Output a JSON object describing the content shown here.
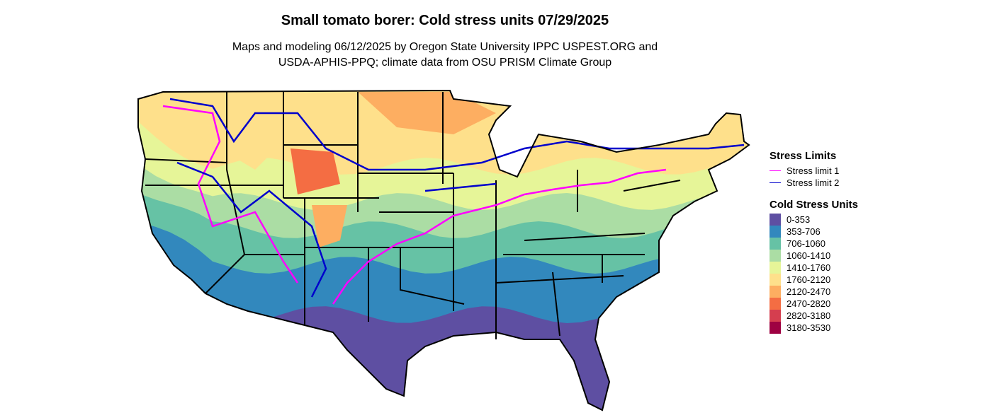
{
  "title": "Small tomato borer: Cold stress units 07/29/2025",
  "subtitle": [
    "Maps and modeling 06/12/2025 by Oregon State University IPPC USPEST.ORG and",
    "USDA-APHIS-PPQ; climate data from OSU PRISM Climate Group"
  ],
  "legend": {
    "lines_title": "Stress Limits",
    "lines": [
      {
        "label": "Stress limit 1",
        "color": "#ff00ff"
      },
      {
        "label": "Stress limit 2",
        "color": "#0000cc"
      }
    ],
    "fill_title": "Cold Stress Units",
    "bins": [
      {
        "label": "0-353",
        "color": "#5e4fa2"
      },
      {
        "label": "353-706",
        "color": "#3288bd"
      },
      {
        "label": "706-1060",
        "color": "#66c2a5"
      },
      {
        "label": "1060-1410",
        "color": "#abdda4"
      },
      {
        "label": "1410-1760",
        "color": "#e6f598"
      },
      {
        "label": "1760-2120",
        "color": "#fee08b"
      },
      {
        "label": "2120-2470",
        "color": "#fdae61"
      },
      {
        "label": "2470-2820",
        "color": "#f46d43"
      },
      {
        "label": "2820-3180",
        "color": "#d53e4f"
      },
      {
        "label": "3180-3530",
        "color": "#9e0142"
      }
    ]
  }
}
